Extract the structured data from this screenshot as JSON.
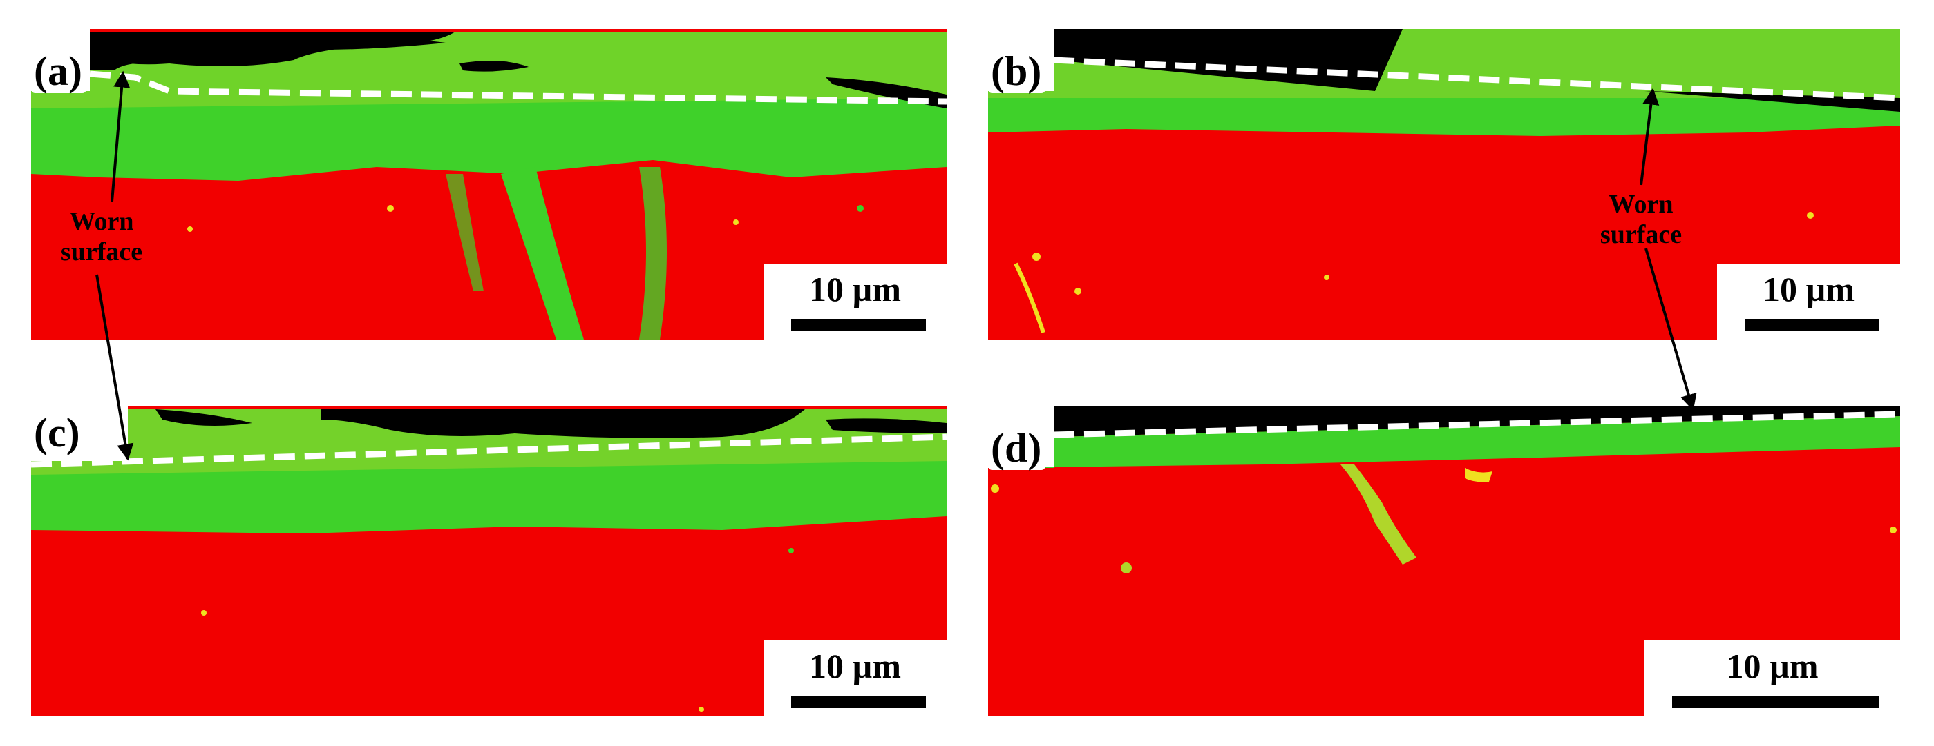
{
  "figure": {
    "panels": [
      {
        "id": "a",
        "label": "(a)",
        "scale_label": "10 µm"
      },
      {
        "id": "b",
        "label": "(b)",
        "scale_label": "10 µm"
      },
      {
        "id": "c",
        "label": "(c)",
        "scale_label": "10 µm"
      },
      {
        "id": "d",
        "label": "(d)",
        "scale_label": "10 µm"
      }
    ],
    "annotations": {
      "worn_surface_left": [
        "Worn",
        "surface"
      ],
      "worn_surface_right": [
        "Worn",
        "surface"
      ]
    },
    "colors": {
      "matrix": "#f20000",
      "fine_grains": "#33dd22",
      "secondary": "#f0e020",
      "unindexed": "#000000",
      "surface_line": "#ffffff"
    }
  }
}
